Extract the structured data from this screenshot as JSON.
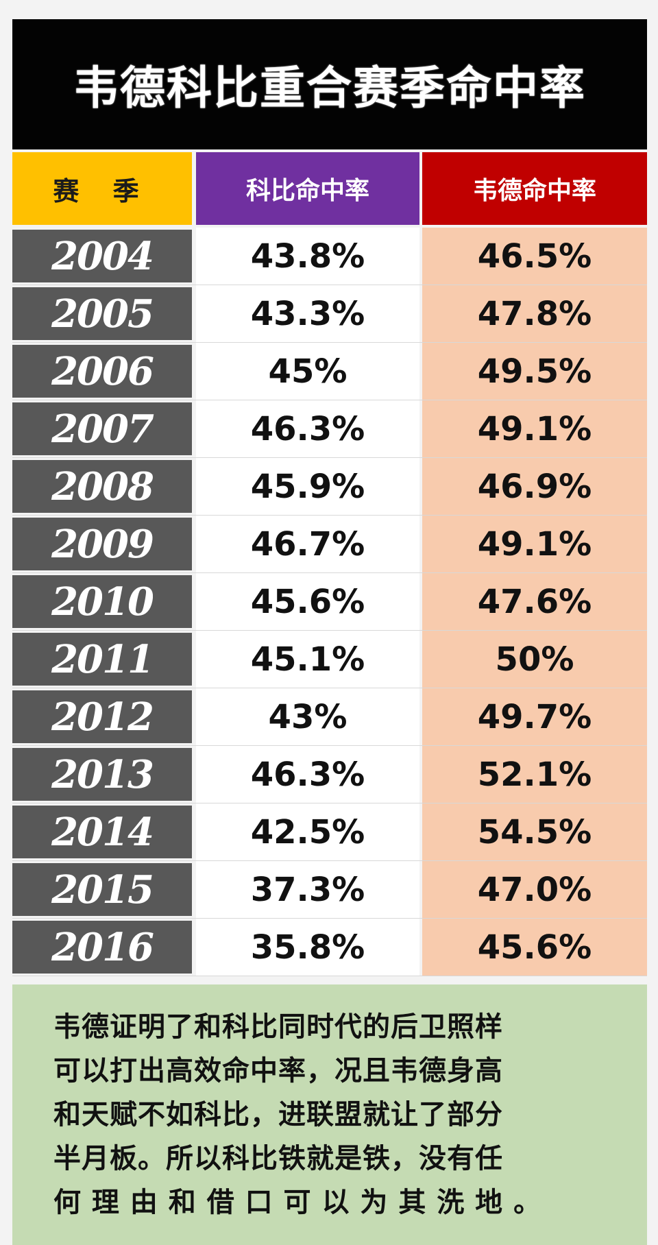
{
  "title": "韦德科比重合赛季命中率",
  "chart_data": {
    "type": "table",
    "columns": [
      "赛 季",
      "科比命中率",
      "韦德命中率"
    ],
    "rows": [
      {
        "season": "2004",
        "kobe": "43.8%",
        "wade": "46.5%"
      },
      {
        "season": "2005",
        "kobe": "43.3%",
        "wade": "47.8%"
      },
      {
        "season": "2006",
        "kobe": "45%",
        "wade": "49.5%"
      },
      {
        "season": "2007",
        "kobe": "46.3%",
        "wade": "49.1%"
      },
      {
        "season": "2008",
        "kobe": "45.9%",
        "wade": "46.9%"
      },
      {
        "season": "2009",
        "kobe": "46.7%",
        "wade": "49.1%"
      },
      {
        "season": "2010",
        "kobe": "45.6%",
        "wade": "47.6%"
      },
      {
        "season": "2011",
        "kobe": "45.1%",
        "wade": "50%"
      },
      {
        "season": "2012",
        "kobe": "43%",
        "wade": "49.7%"
      },
      {
        "season": "2013",
        "kobe": "46.3%",
        "wade": "52.1%"
      },
      {
        "season": "2014",
        "kobe": "42.5%",
        "wade": "54.5%"
      },
      {
        "season": "2015",
        "kobe": "37.3%",
        "wade": "47.0%"
      },
      {
        "season": "2016",
        "kobe": "35.8%",
        "wade": "45.6%"
      }
    ]
  },
  "note_lines": [
    "韦德证明了和科比同时代的后卫照样",
    "可以打出高效命中率，况且韦德身高",
    "和天赋不如科比，进联盟就让了部分",
    "半月板。所以科比铁就是铁，没有任",
    "何 理 由 和 借 口 可 以 为 其 洗 地 。"
  ],
  "colors": {
    "title_bg": "#030303",
    "season_header_bg": "#ffc000",
    "kobe_header_bg": "#7030a0",
    "wade_header_bg": "#c00000",
    "season_cell_bg": "#585858",
    "kobe_cell_bg": "#ffffff",
    "wade_cell_bg": "#f8cbad",
    "note_bg": "#c5dbb3"
  }
}
